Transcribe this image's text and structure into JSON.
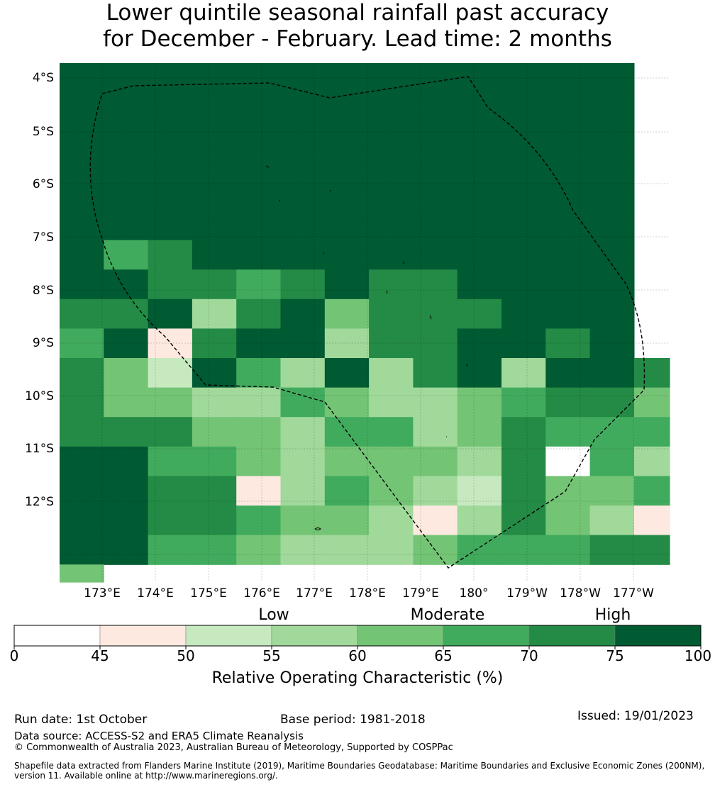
{
  "title": {
    "line1": "Lower quintile seasonal rainfall past accuracy",
    "line2": "for December - February. Lead time: 2 months"
  },
  "map": {
    "lat_labels": [
      "4°S",
      "5°S",
      "6°S",
      "7°S",
      "8°S",
      "9°S",
      "10°S",
      "11°S",
      "12°S"
    ],
    "lon_labels": [
      "173°E",
      "174°E",
      "175°E",
      "176°E",
      "177°E",
      "178°E",
      "179°E",
      "180°",
      "179°W",
      "178°W",
      "177°W"
    ],
    "grid_rows": [
      "9999999999999",
      "9999999999999",
      "9999999999999",
      "9999999999999",
      "9999999999999",
      "9999999999999",
      "9569999999999",
      "9766589889999",
      "6873674886999",
      "5718773869989",
      "64275373873796",
      "64433543345884",
      "88644355346555",
      "99554344436053",
      "99661354326445",
      "99665443136431",
      "99554333455586",
      "4"
    ],
    "color_key": {
      "0": "#ffffff",
      "1": "#fee9e0",
      "2": "#c7e9c0",
      "3": "#a1d99b",
      "4": "#74c476",
      "5": "#41ab5d",
      "6": "#238b45",
      "7": "#005a32",
      "8": "#238b45",
      "9": "#005a32"
    }
  },
  "colorbar": {
    "bands": [
      "Low",
      "Moderate",
      "High"
    ],
    "ticks": [
      "0",
      "45",
      "50",
      "55",
      "60",
      "65",
      "70",
      "75",
      "100"
    ],
    "colors": [
      "#ffffff",
      "#fee9e0",
      "#c7e9c0",
      "#a1d99b",
      "#74c476",
      "#41ab5d",
      "#238b45",
      "#005a32"
    ],
    "label": "Relative Operating Characteristic (%)"
  },
  "footer": {
    "run_date": "Run date: 1st October",
    "base_period": "Base period: 1981-2018",
    "issued": "Issued: 19/01/2023",
    "data_source": "Data source: ACCESS-S2 and ERA5 Climate Reanalysis",
    "copyright": "© Commonwealth of Australia 2023, Australian Bureau of Meteorology, Supported by COSPPac",
    "shapefile_line1": "Shapefile data extracted from Flanders Marine Institute (2019), Maritime Boundaries Geodatabase: Maritime Boundaries and Exclusive Economic Zones (200NM),",
    "shapefile_line2": "version 11. Available online at http://www.marineregions.org/."
  }
}
